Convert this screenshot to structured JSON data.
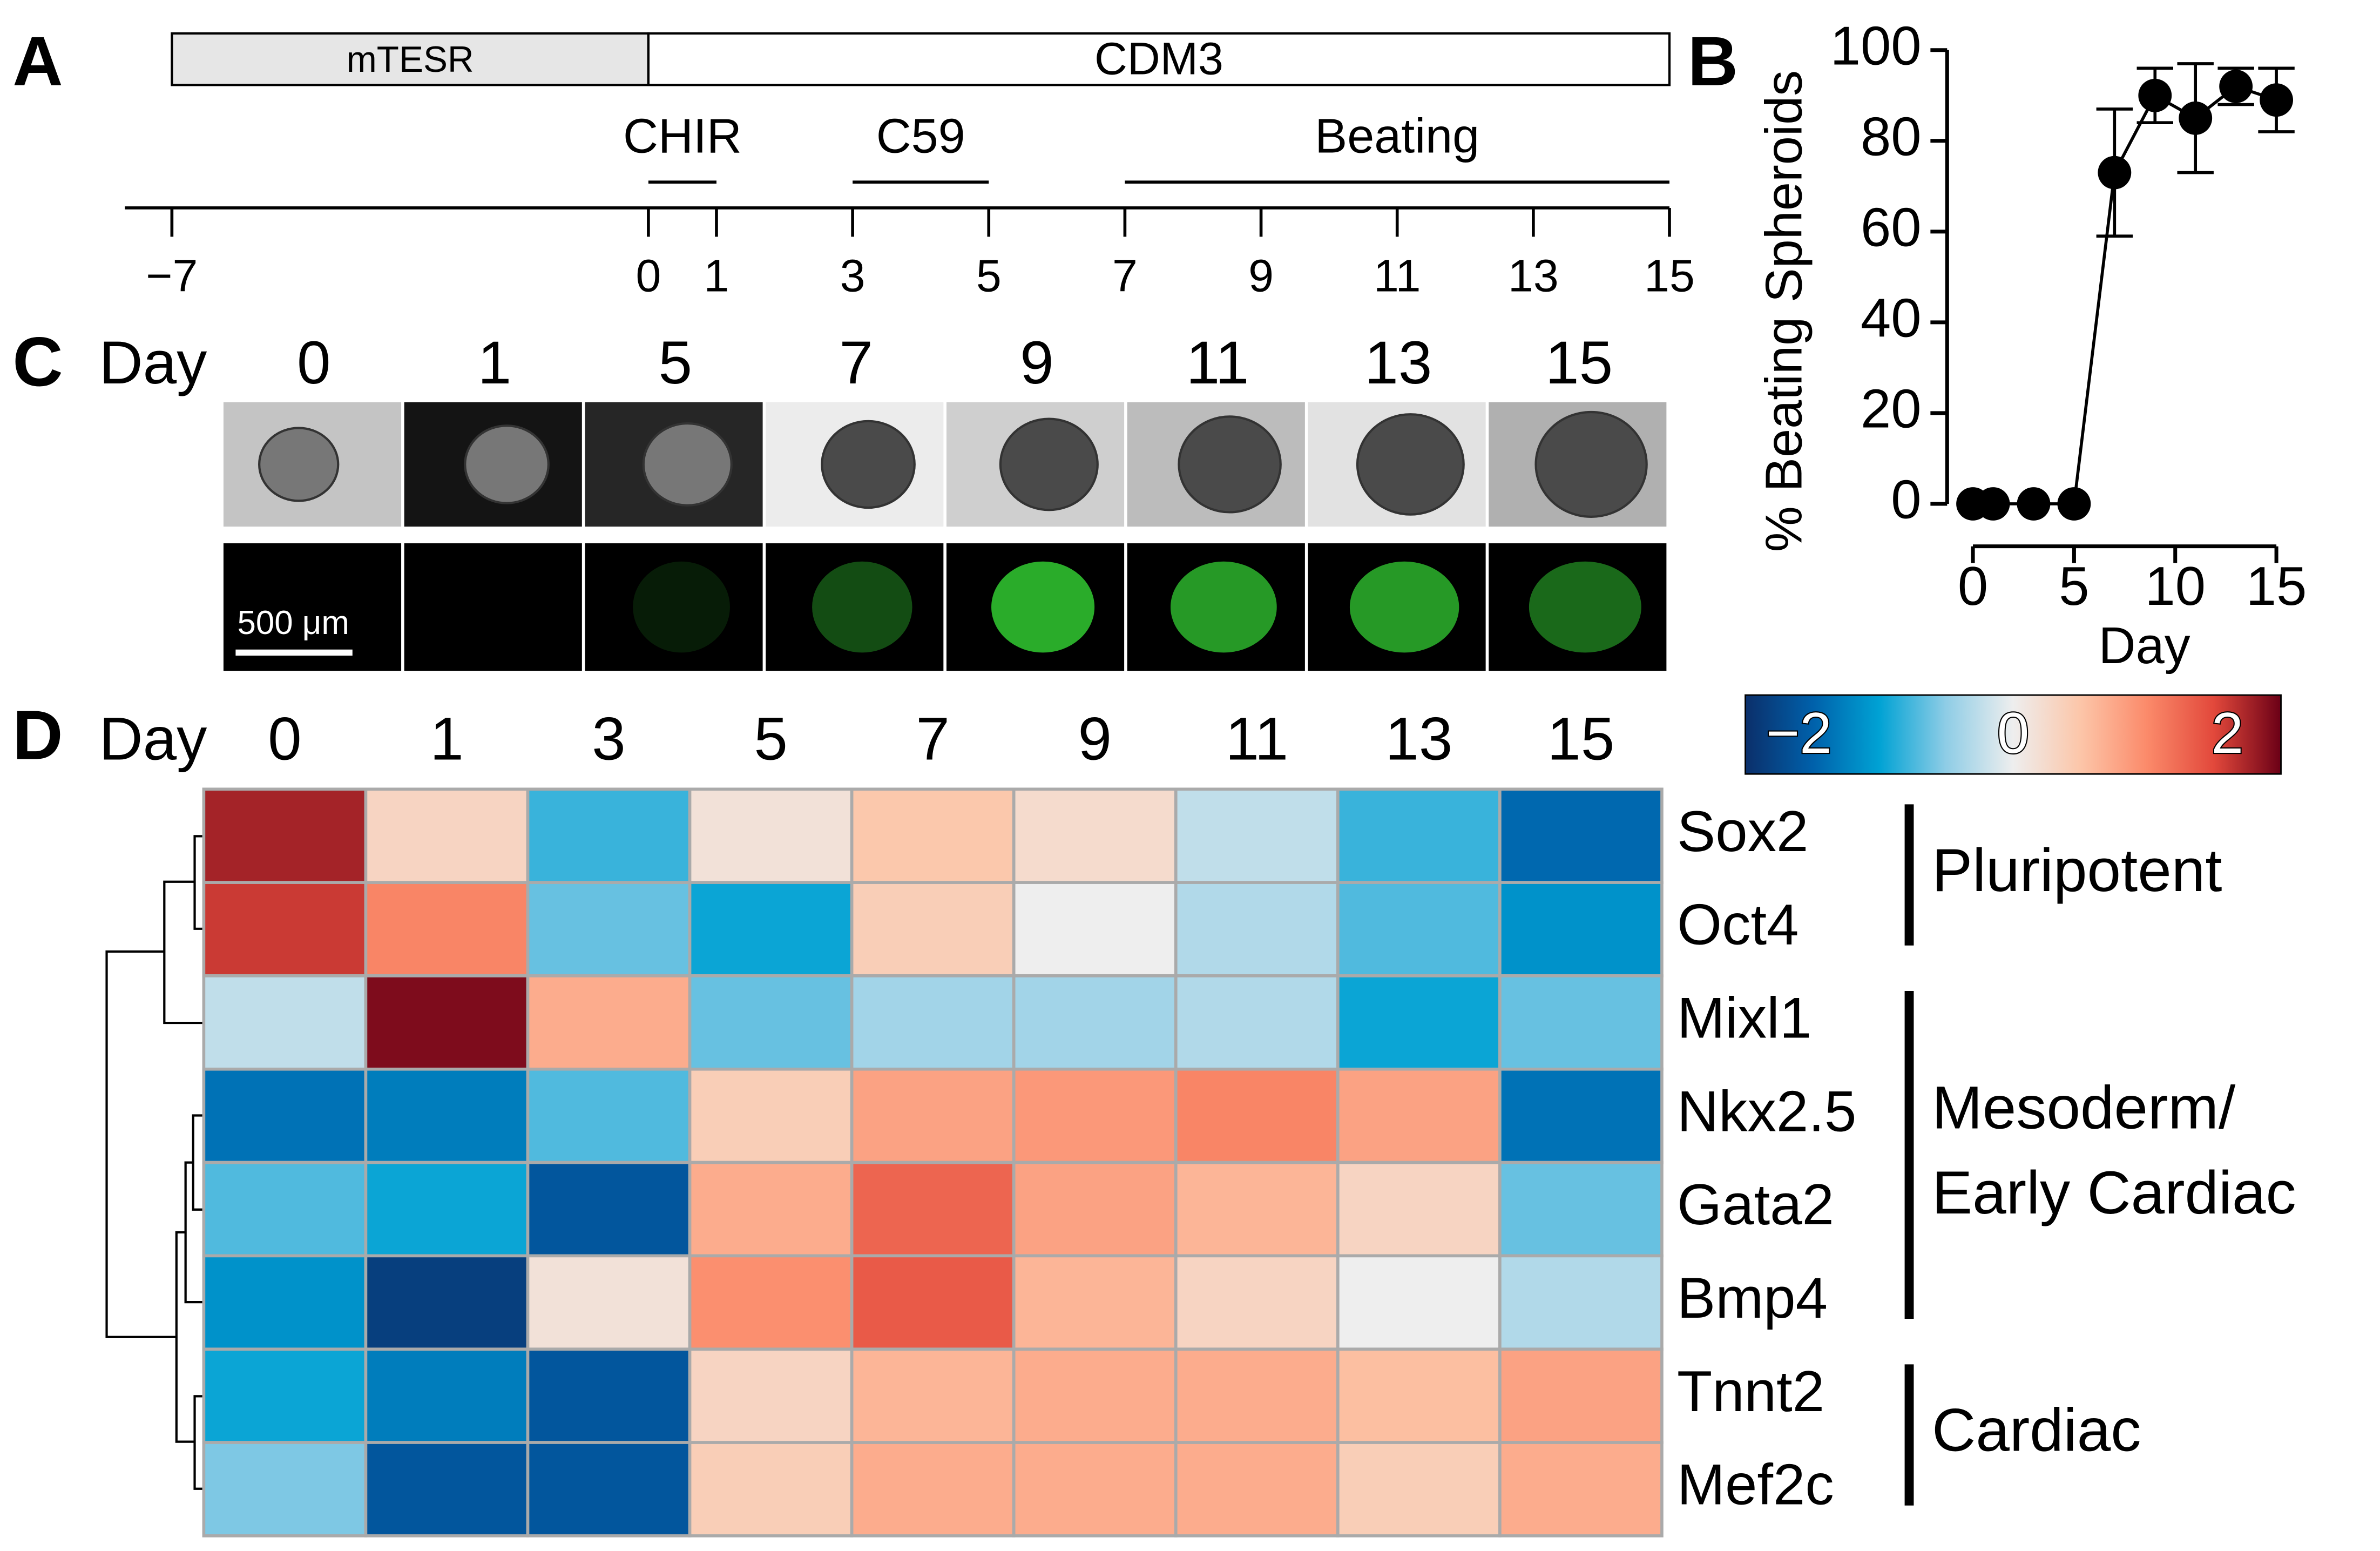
{
  "panel_labels": [
    "A",
    "B",
    "C",
    "D"
  ],
  "timeline": {
    "media": [
      {
        "label": "mTESR",
        "start": -7,
        "end": 0,
        "color": "#e6e6e6"
      },
      {
        "label": "CDM3",
        "start": 0,
        "end": 15,
        "color": "#ffffff"
      }
    ],
    "treatments": [
      {
        "label": "CHIR",
        "start": 0,
        "end": 1
      },
      {
        "label": "C59",
        "start": 3,
        "end": 5
      },
      {
        "label": "Beating",
        "start": 7,
        "end": 15
      }
    ],
    "xlim": [
      -7,
      15
    ],
    "xticks": [
      {
        "value": -7,
        "label": "−7"
      },
      0,
      1,
      3,
      5,
      7,
      9,
      11,
      13,
      15
    ]
  },
  "images": {
    "xlabel": "Day",
    "days": [
      "0",
      "1",
      "5",
      "7",
      "9",
      "11",
      "13",
      "15"
    ],
    "scale_bar": "500 μm"
  },
  "chart_data": [
    {
      "type": "line",
      "ylabel": "% Beating Spheroids",
      "xlabel": "Day",
      "x": [
        0,
        1,
        3,
        5,
        7,
        9,
        11,
        13,
        15
      ],
      "series": [
        {
          "color": "#000000",
          "values": [
            0,
            0,
            0,
            0,
            73,
            90,
            85,
            92,
            89
          ],
          "errors": [
            0,
            0,
            0,
            0,
            14,
            6,
            12,
            4,
            7
          ]
        }
      ],
      "xlim": [
        0,
        15
      ],
      "ylim": [
        0,
        100
      ],
      "xticks": [
        0,
        5,
        10,
        15
      ],
      "yticks": [
        0,
        20,
        40,
        60,
        80,
        100
      ]
    },
    {
      "type": "heatmap",
      "xlabel": "Day",
      "categories": [
        "0",
        "1",
        "3",
        "5",
        "7",
        "9",
        "11",
        "13",
        "15"
      ],
      "rows": [
        "Sox2",
        "Oct4",
        "Mixl1",
        "Nkx2.5",
        "Gata2",
        "Bmp4",
        "Tnnt2",
        "Mef2c"
      ],
      "values": [
        [
          2.2,
          0.4,
          -1.0,
          0.2,
          0.6,
          0.3,
          -0.3,
          -1.0,
          -1.8
        ],
        [
          2.0,
          1.3,
          -0.8,
          -1.2,
          0.5,
          0.0,
          -0.4,
          -0.9,
          -1.4
        ],
        [
          -0.3,
          2.4,
          0.9,
          -0.8,
          -0.5,
          -0.5,
          -0.4,
          -1.2,
          -0.8
        ],
        [
          -1.7,
          -1.6,
          -0.9,
          0.5,
          1.0,
          1.1,
          1.3,
          1.0,
          -1.7
        ],
        [
          -0.9,
          -1.2,
          -2.0,
          0.9,
          1.6,
          1.0,
          0.8,
          0.4,
          -0.8
        ],
        [
          -1.4,
          -2.3,
          0.2,
          1.2,
          1.7,
          0.8,
          0.4,
          0.0,
          -0.4
        ],
        [
          -1.2,
          -1.6,
          -2.0,
          0.4,
          0.8,
          0.9,
          0.9,
          0.7,
          1.0
        ],
        [
          -0.7,
          -2.0,
          -2.0,
          0.5,
          0.9,
          0.9,
          0.9,
          0.5,
          0.9
        ]
      ],
      "clim": [
        -2.5,
        2.5
      ],
      "colorbar_ticks": [
        {
          "value": -2,
          "label": "−2"
        },
        0,
        2
      ],
      "colormap": [
        "#0b2f6a",
        "#0060aa",
        "#00a2d4",
        "#8fcde6",
        "#eeeeee",
        "#fcc6a9",
        "#fb8a6a",
        "#e2483b",
        "#6b0016"
      ],
      "groups": [
        {
          "label": [
            "Pluripotent"
          ],
          "rows": [
            0,
            1
          ]
        },
        {
          "label": [
            "Mesoderm/",
            "Early Cardiac"
          ],
          "rows": [
            2,
            5
          ]
        },
        {
          "label": [
            "Cardiac"
          ],
          "rows": [
            6,
            7
          ]
        }
      ]
    }
  ]
}
